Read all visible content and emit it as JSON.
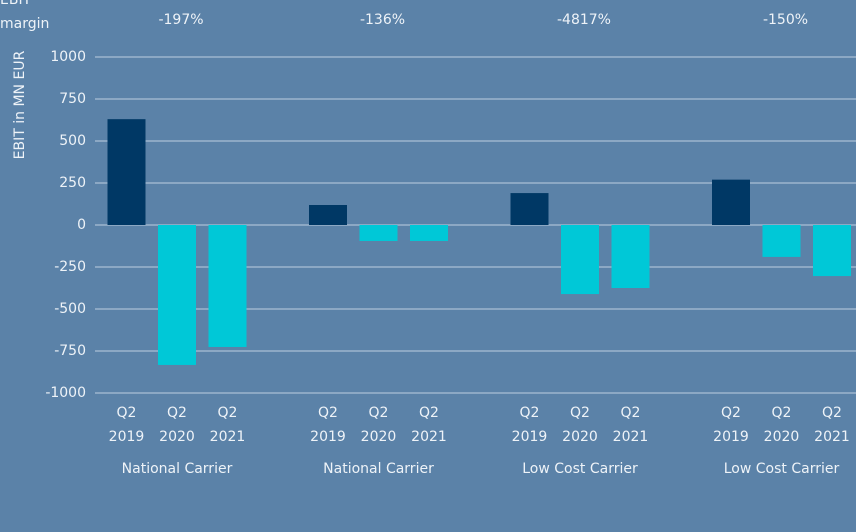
{
  "chart_data": {
    "type": "grouped-bar",
    "y_label": "EBIT in MN EUR",
    "margin_label": "EBIT margin",
    "groups": [
      "National Carrier",
      "National Carrier",
      "Low Cost Carrier",
      "Low Cost Carrier"
    ],
    "margins": [
      "-197%",
      "-136%",
      "-4817%",
      "-150%"
    ],
    "periods": [
      "Q2 2019",
      "Q2 2020",
      "Q2 2021"
    ],
    "colors": [
      "#003865",
      "#00c8d7",
      "#00c8d7"
    ],
    "values": [
      [
        630,
        -833,
        -726
      ],
      [
        119,
        -95,
        -95
      ],
      [
        190,
        -411,
        -375
      ],
      [
        270,
        -190,
        -304
      ]
    ],
    "ylim": [
      -1000,
      1000
    ],
    "yticks": [
      -1000,
      -750,
      -500,
      -250,
      0,
      250,
      500,
      750,
      1000
    ],
    "grid": true
  }
}
